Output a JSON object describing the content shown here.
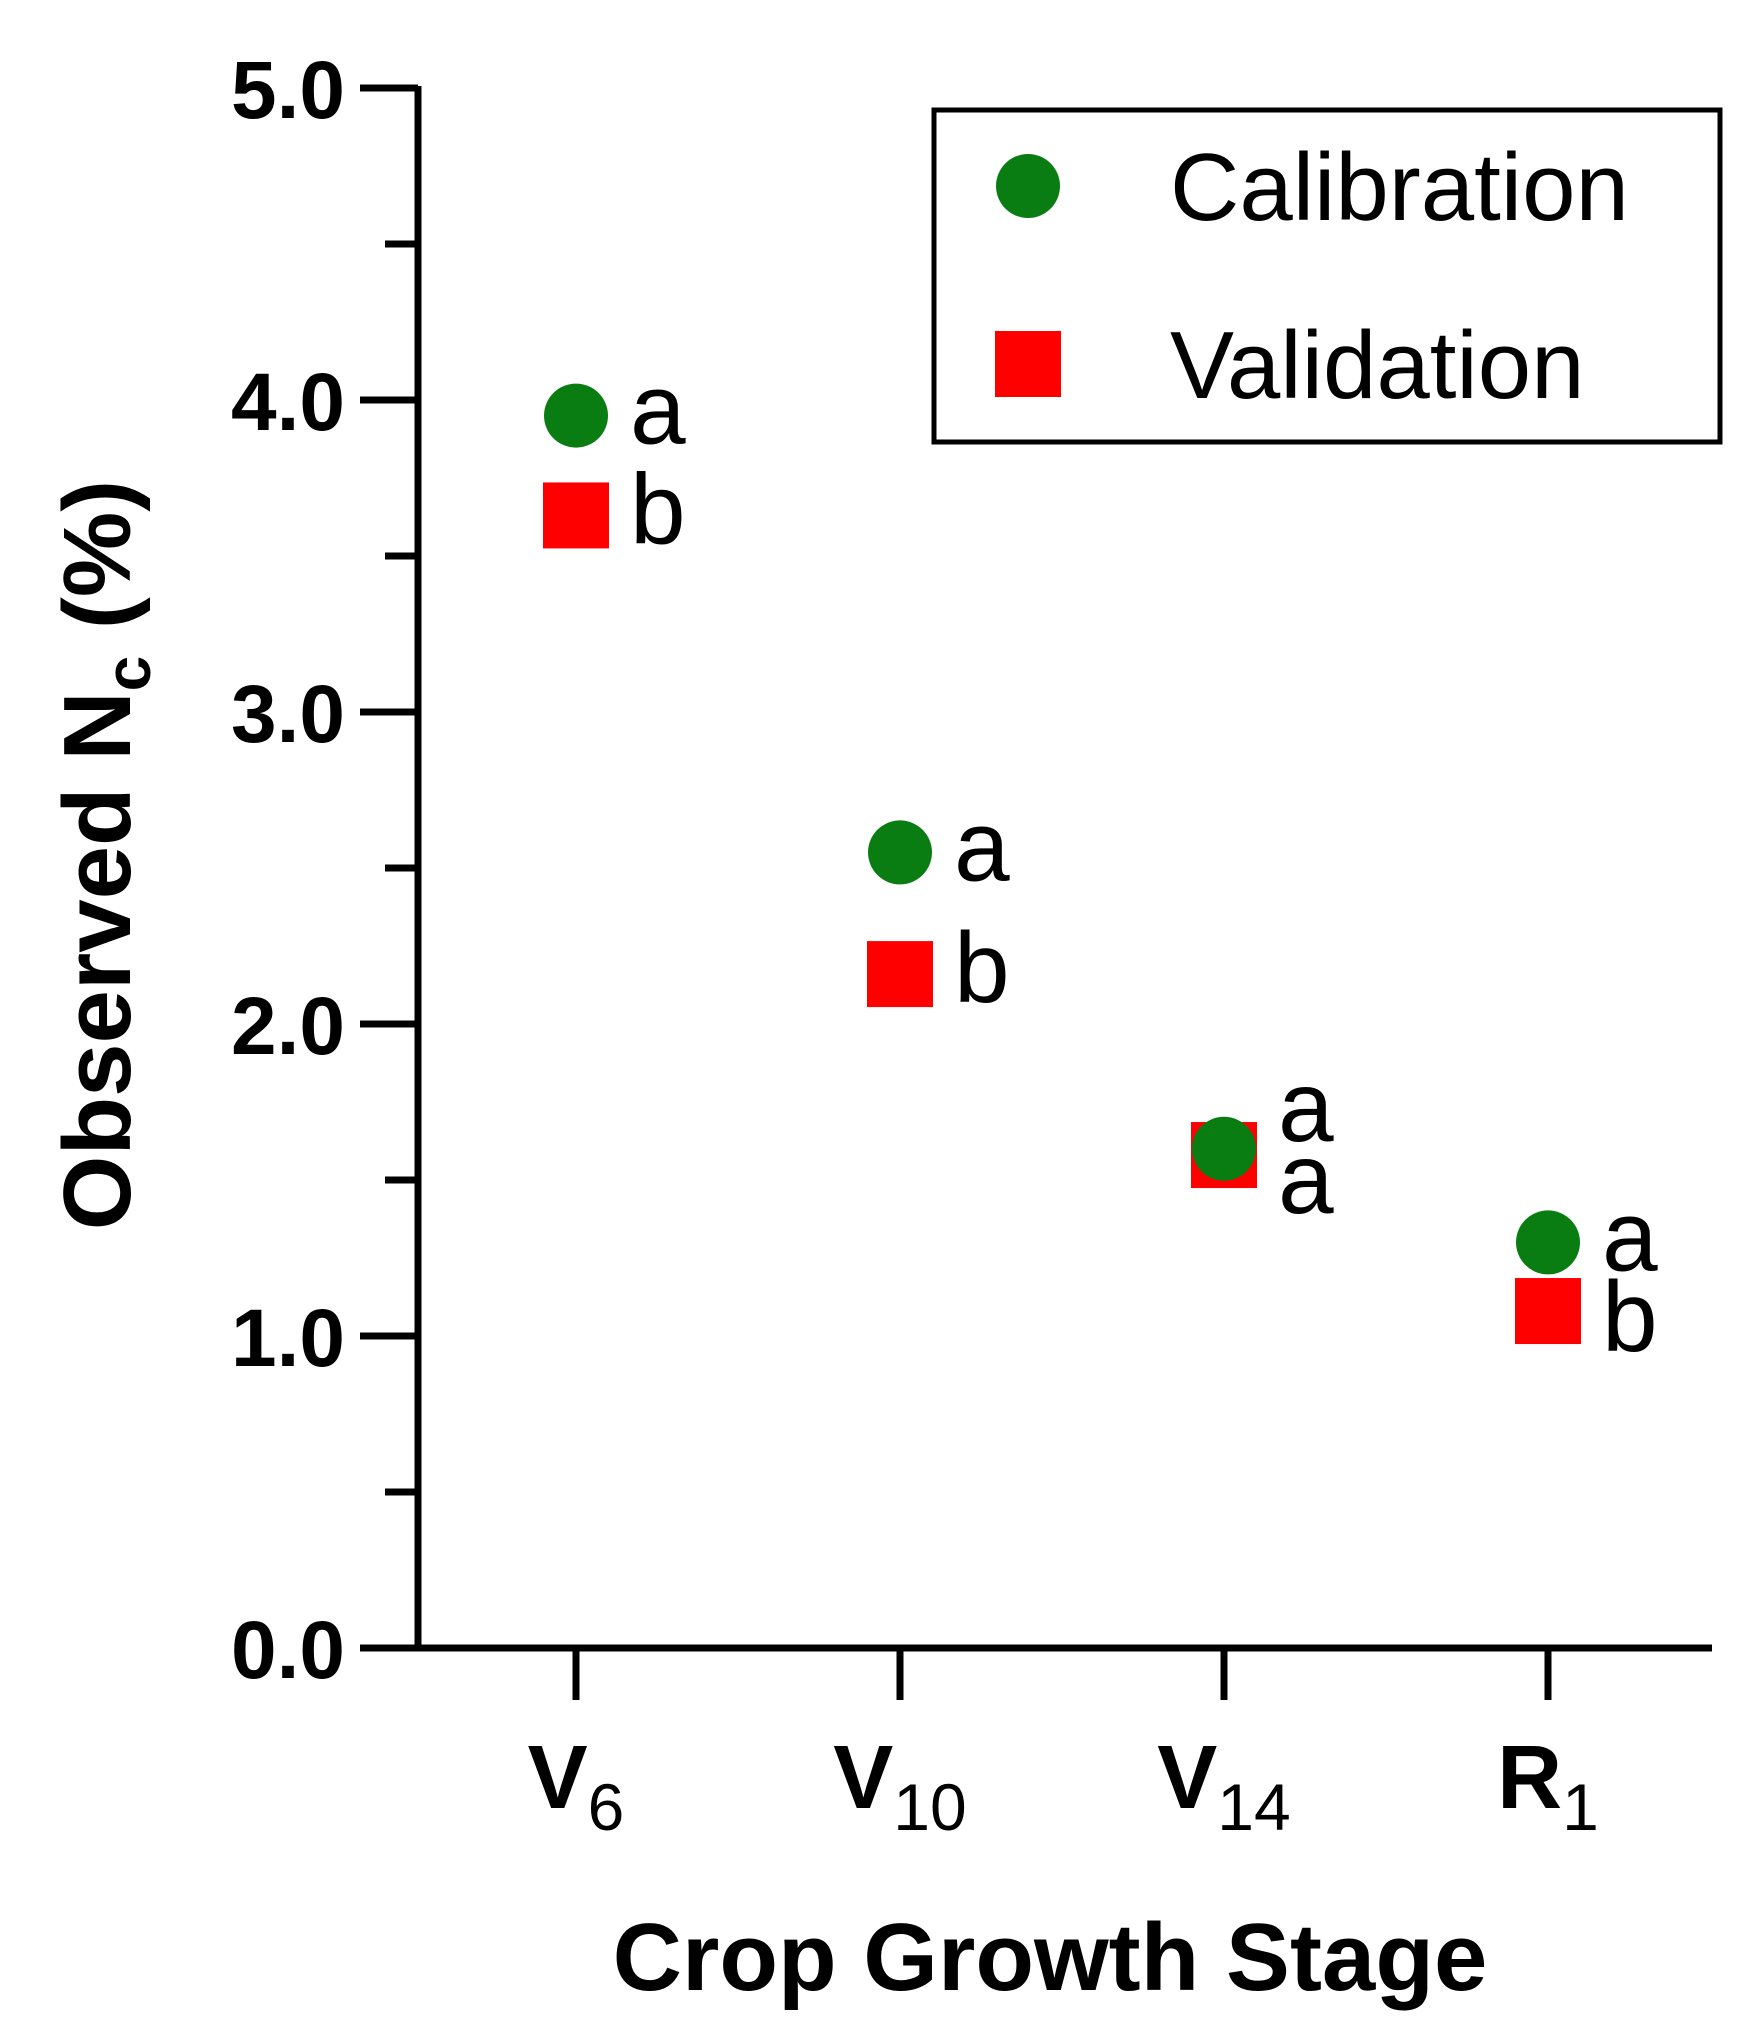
{
  "chart_data": {
    "type": "scatter",
    "title": "",
    "xlabel": "Crop Growth Stage",
    "ylabel": {
      "main": "Observed N",
      "sub": "c",
      "suffix": " (%)"
    },
    "ylim": [
      0,
      5
    ],
    "yticks": [
      {
        "value": 0,
        "label": "0.0"
      },
      {
        "value": 1,
        "label": "1.0"
      },
      {
        "value": 2,
        "label": "2.0"
      },
      {
        "value": 3,
        "label": "3.0"
      },
      {
        "value": 4,
        "label": "4.0"
      },
      {
        "value": 5,
        "label": "5.0"
      }
    ],
    "y_minor_step": 0.5,
    "categories": [
      {
        "main": "V",
        "sub": "6"
      },
      {
        "main": "V",
        "sub": "10"
      },
      {
        "main": "V",
        "sub": "14"
      },
      {
        "main": "R",
        "sub": "1"
      }
    ],
    "series": [
      {
        "name": "Calibration",
        "marker": "circle",
        "color": "#0a7d12",
        "values": [
          3.95,
          2.55,
          1.6,
          1.3
        ],
        "letters": [
          "a",
          "a",
          "a",
          "a"
        ]
      },
      {
        "name": "Validation",
        "marker": "square",
        "color": "#ff0000",
        "values": [
          3.63,
          2.16,
          1.58,
          1.08
        ],
        "letters": [
          "b",
          "b",
          "a",
          "b"
        ]
      }
    ],
    "legend": {
      "position": "top-right",
      "entries": [
        "Calibration",
        "Validation"
      ]
    },
    "grid": false
  }
}
